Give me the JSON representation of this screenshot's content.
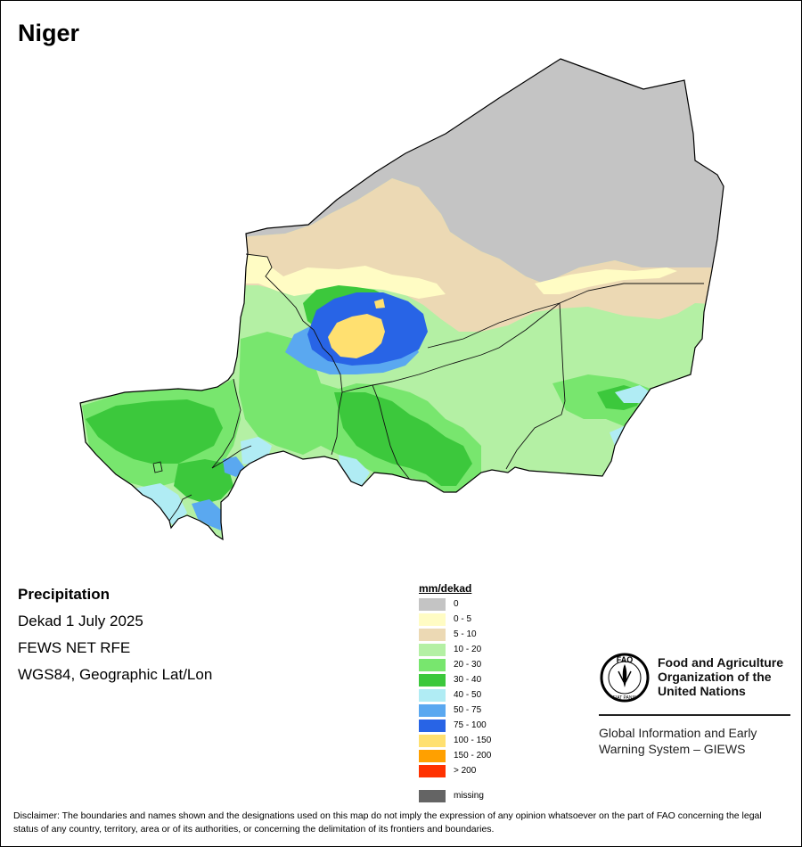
{
  "title": "Niger",
  "info": {
    "variable": "Precipitation",
    "period": "Dekad 1 July 2025",
    "source": "FEWS NET RFE",
    "projection": "WGS84, Geographic Lat/Lon"
  },
  "legend": {
    "title": "mm/dekad",
    "items": [
      {
        "label": "0",
        "color": "#c4c4c4"
      },
      {
        "label": "0 - 5",
        "color": "#fffcc4"
      },
      {
        "label": "5 - 10",
        "color": "#ecd9b4"
      },
      {
        "label": "10 - 20",
        "color": "#b4f0a4"
      },
      {
        "label": "20 - 30",
        "color": "#78e66e"
      },
      {
        "label": "30 - 40",
        "color": "#3cc83c"
      },
      {
        "label": "40 - 50",
        "color": "#b0ecf4"
      },
      {
        "label": "50 - 75",
        "color": "#5aa8f0"
      },
      {
        "label": "75 - 100",
        "color": "#2864e6"
      },
      {
        "label": "100 - 150",
        "color": "#ffe070"
      },
      {
        "label": "150 - 200",
        "color": "#ffa000"
      },
      {
        "label": "> 200",
        "color": "#ff3200"
      }
    ],
    "missing": {
      "label": "missing",
      "color": "#646464"
    }
  },
  "organization": {
    "name": "Food and Agriculture Organization of the United Nations",
    "logo_text": "FAO",
    "logo_motto": "FIAT PANIS",
    "system": "Global Information and Early Warning System – GIEWS"
  },
  "disclaimer": "Disclaimer: The boundaries and names shown and the designations used on this map do not imply the expression of any opinion whatsoever on the part of FAO concerning the legal status of any country, territory, area or of its authorities, or concerning the delimitation of its frontiers and boundaries."
}
